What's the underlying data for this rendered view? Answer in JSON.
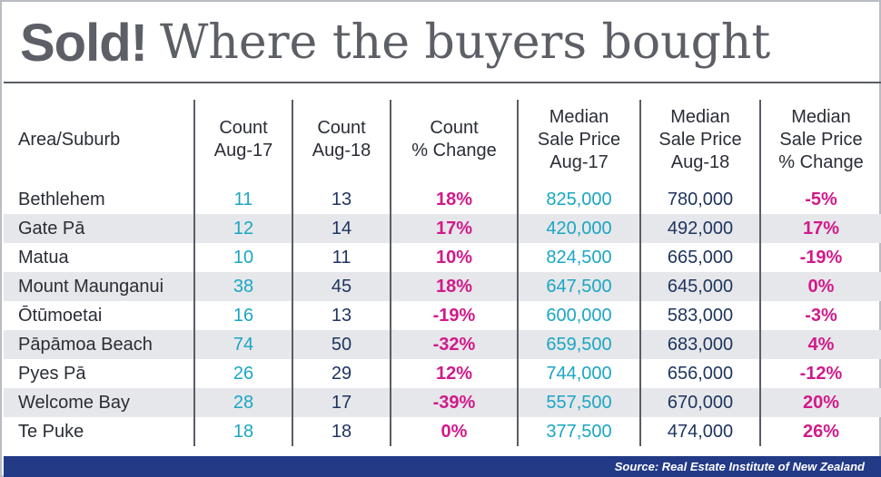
{
  "title": {
    "bold": "Sold!",
    "rest": "Where the buyers bought"
  },
  "table": {
    "headers": [
      [
        "Area/Suburb"
      ],
      [
        "Count",
        "Aug-17"
      ],
      [
        "Count",
        "Aug-18"
      ],
      [
        "Count",
        "% Change"
      ],
      [
        "Median",
        "Sale Price",
        "Aug-17"
      ],
      [
        "Median",
        "Sale Price",
        "Aug-18"
      ],
      [
        "Median",
        "Sale Price",
        "% Change"
      ]
    ],
    "rows": [
      {
        "area": "Bethlehem",
        "count_aug17": "11",
        "count_aug18": "13",
        "count_change": "18%",
        "price_aug17": "825,000",
        "price_aug18": "780,000",
        "price_change": "-5%"
      },
      {
        "area": "Gate Pā",
        "count_aug17": "12",
        "count_aug18": "14",
        "count_change": "17%",
        "price_aug17": "420,000",
        "price_aug18": "492,000",
        "price_change": "17%"
      },
      {
        "area": "Matua",
        "count_aug17": "10",
        "count_aug18": "11",
        "count_change": "10%",
        "price_aug17": "824,500",
        "price_aug18": "665,000",
        "price_change": "-19%"
      },
      {
        "area": "Mount Maunganui",
        "count_aug17": "38",
        "count_aug18": "45",
        "count_change": "18%",
        "price_aug17": "647,500",
        "price_aug18": "645,000",
        "price_change": "0%"
      },
      {
        "area": "Ōtūmoetai",
        "count_aug17": "16",
        "count_aug18": "13",
        "count_change": "-19%",
        "price_aug17": "600,000",
        "price_aug18": "583,000",
        "price_change": "-3%"
      },
      {
        "area": "Pāpāmoa Beach",
        "count_aug17": "74",
        "count_aug18": "50",
        "count_change": "-32%",
        "price_aug17": "659,500",
        "price_aug18": "683,000",
        "price_change": "4%"
      },
      {
        "area": "Pyes Pā",
        "count_aug17": "26",
        "count_aug18": "29",
        "count_change": "12%",
        "price_aug17": "744,000",
        "price_aug18": "656,000",
        "price_change": "-12%"
      },
      {
        "area": "Welcome Bay",
        "count_aug17": "28",
        "count_aug18": "17",
        "count_change": "-39%",
        "price_aug17": "557,500",
        "price_aug18": "670,000",
        "price_change": "20%"
      },
      {
        "area": "Te Puke",
        "count_aug17": "18",
        "count_aug18": "18",
        "count_change": "0%",
        "price_aug17": "377,500",
        "price_aug18": "474,000",
        "price_change": "26%"
      }
    ]
  },
  "source": "Source: Real Estate Institute of New Zealand",
  "colors": {
    "title_gray": "#5d5f66",
    "teal": "#1aa6c4",
    "navy": "#1f3560",
    "pink": "#d11a8b",
    "row_shade": "#e6e7ea",
    "source_bar": "#233a86"
  }
}
